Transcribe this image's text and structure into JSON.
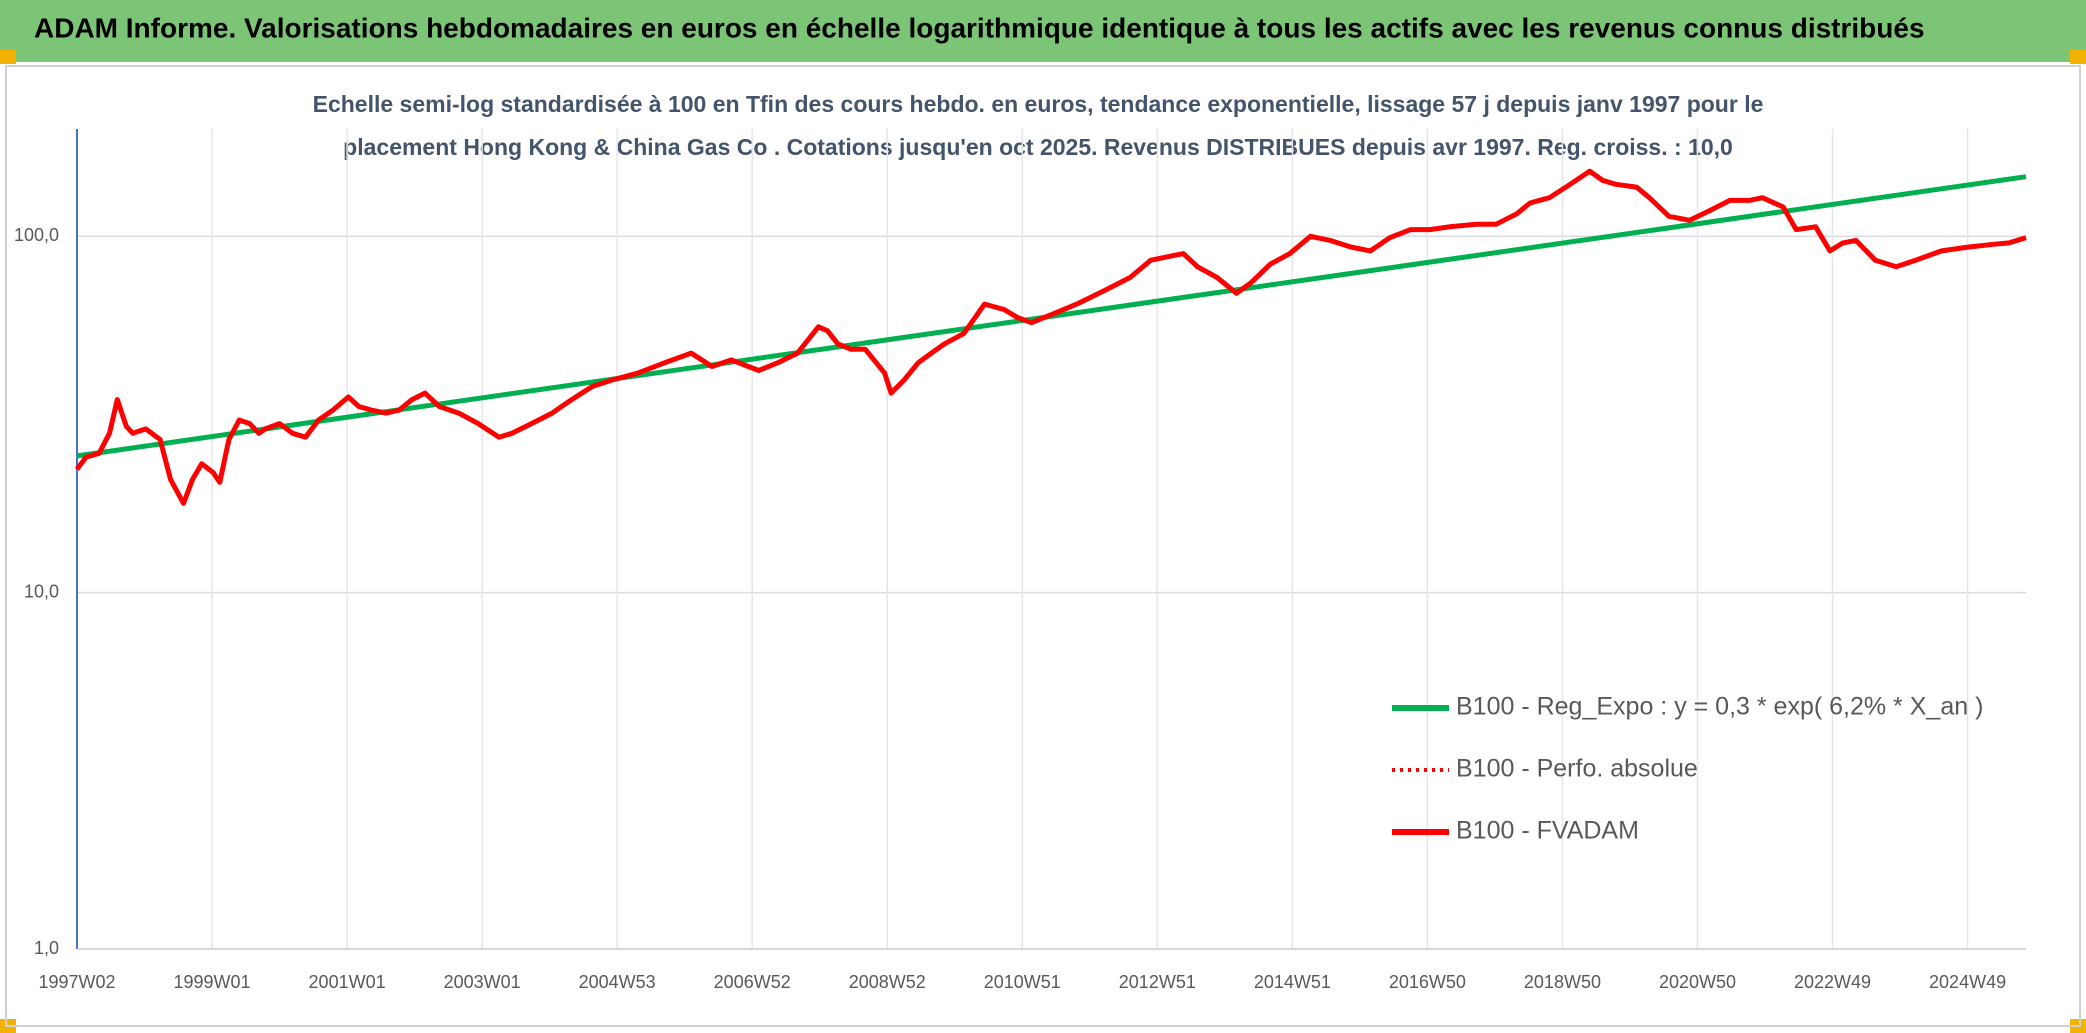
{
  "chart_data": {
    "type": "line",
    "title": "ADAM Informe. Valorisations hebdomadaires en euros en échelle logarithmique identique à tous les actifs avec les revenus connus distribués",
    "subtitle": [
      "Echelle semi-log standardisée à 100 en Tfin des cours hebdo. en euros, tendance exponentielle, lissage 57 j depuis janv 1997 pour le",
      "placement Hong Kong & China Gas Co . Cotations jusqu'en oct 2025. Revenus DISTRIBUES depuis avr 1997. Reg. croiss. : 10,0"
    ],
    "log_scale": true,
    "grid": true,
    "legend": "lower right",
    "xlim": [
      0,
      1501
    ],
    "xticks": [
      {
        "value": 0,
        "label": "1997W02"
      },
      {
        "value": 104,
        "label": "1999W01"
      },
      {
        "value": 208,
        "label": "2001W01"
      },
      {
        "value": 312,
        "label": "2003W01"
      },
      {
        "value": 416,
        "label": "2004W53"
      },
      {
        "value": 520,
        "label": "2006W52"
      },
      {
        "value": 624,
        "label": "2008W52"
      },
      {
        "value": 728,
        "label": "2010W51"
      },
      {
        "value": 832,
        "label": "2012W51"
      },
      {
        "value": 936,
        "label": "2014W51"
      },
      {
        "value": 1040,
        "label": "2016W50"
      },
      {
        "value": 1144,
        "label": "2018W50"
      },
      {
        "value": 1248,
        "label": "2020W50"
      },
      {
        "value": 1352,
        "label": "2022W49"
      },
      {
        "value": 1456,
        "label": "2024W49"
      }
    ],
    "ylim": [
      1,
      200
    ],
    "yticks": [
      {
        "value": 1,
        "label": "1,0"
      },
      {
        "value": 10,
        "label": "10,0"
      },
      {
        "value": 100,
        "label": "100,0"
      }
    ],
    "series": [
      {
        "name": "B100 - Reg_Expo : y = 0,3 * exp( 6,2% *  X_an )",
        "color": "#00b050",
        "line_style": "solid",
        "x": [
          0,
          1501
        ],
        "values": [
          24.2,
          147
        ]
      },
      {
        "name": "B100 - Perfo. absolue",
        "color": "#ff0000",
        "line_style": "dotted",
        "x": [
          0,
          7,
          17,
          25,
          31,
          38,
          43,
          53,
          64,
          72,
          82,
          89,
          96,
          105,
          110,
          117,
          125,
          133,
          140,
          145,
          156,
          166,
          176,
          186,
          197,
          209,
          217,
          227,
          238,
          248,
          258,
          268,
          279,
          294,
          309,
          325,
          335,
          350,
          366,
          381,
          397,
          412,
          432,
          453,
          473,
          489,
          504,
          525,
          540,
          555,
          571,
          578,
          586,
          596,
          607,
          622,
          627,
          637,
          648,
          658,
          668,
          683,
          699,
          714,
          724,
          735,
          750,
          770,
          791,
          811,
          827,
          842,
          852,
          863,
          878,
          893,
          904,
          919,
          934,
          950,
          965,
          981,
          996,
          1011,
          1027,
          1042,
          1057,
          1078,
          1093,
          1109,
          1119,
          1134,
          1150,
          1165,
          1175,
          1185,
          1201,
          1211,
          1226,
          1242,
          1257,
          1273,
          1288,
          1298,
          1314,
          1324,
          1339,
          1350,
          1360,
          1370,
          1385,
          1401,
          1416,
          1436,
          1457,
          1477,
          1488,
          1501
        ],
        "values": [
          22.2,
          24.0,
          24.6,
          28.0,
          34.8,
          29.3,
          28.0,
          28.8,
          26.9,
          20.8,
          17.8,
          20.8,
          23.0,
          21.7,
          20.4,
          26.9,
          30.5,
          29.8,
          28.0,
          28.8,
          29.8,
          28.0,
          27.3,
          30.5,
          32.5,
          35.4,
          33.3,
          32.5,
          31.9,
          32.5,
          34.8,
          36.3,
          33.3,
          31.9,
          29.8,
          27.3,
          28.0,
          29.8,
          31.9,
          34.8,
          37.9,
          39.5,
          41.3,
          44.2,
          47.0,
          43.1,
          45.0,
          42.0,
          44.2,
          47.0,
          55.7,
          54.3,
          49.9,
          48.2,
          48.2,
          41.3,
          36.3,
          39.5,
          44.2,
          47.0,
          49.9,
          53.4,
          64.5,
          62.3,
          59.2,
          57.2,
          60.2,
          64.5,
          70.3,
          76.6,
          85.7,
          87.9,
          89.4,
          82.1,
          76.6,
          69.2,
          74.0,
          83.5,
          89.4,
          100,
          97.4,
          93.3,
          91.0,
          99.1,
          104.4,
          104.4,
          106.3,
          108.1,
          108.1,
          115.7,
          124.0,
          128.3,
          139.9,
          152.3,
          143.5,
          139.9,
          137.4,
          128.3,
          113.8,
          110.9,
          117.8,
          126.1,
          126.1,
          128.3,
          120.8,
          104.4,
          106.3,
          91.0,
          95.8,
          97.4,
          85.7,
          82.1,
          85.7,
          91.0,
          93.3,
          95.0,
          95.8,
          99.1
        ]
      },
      {
        "name": "B100 - FVADAM",
        "color": "#ff0000",
        "line_style": "solid",
        "x": [
          0,
          7,
          17,
          25,
          31,
          38,
          43,
          53,
          64,
          72,
          82,
          89,
          96,
          105,
          110,
          117,
          125,
          133,
          140,
          145,
          156,
          166,
          176,
          186,
          197,
          209,
          217,
          227,
          238,
          248,
          258,
          268,
          279,
          294,
          309,
          325,
          335,
          350,
          366,
          381,
          397,
          412,
          432,
          453,
          473,
          489,
          504,
          525,
          540,
          555,
          571,
          578,
          586,
          596,
          607,
          622,
          627,
          637,
          648,
          658,
          668,
          683,
          699,
          714,
          724,
          735,
          750,
          770,
          791,
          811,
          827,
          842,
          852,
          863,
          878,
          893,
          904,
          919,
          934,
          950,
          965,
          981,
          996,
          1011,
          1027,
          1042,
          1057,
          1078,
          1093,
          1109,
          1119,
          1134,
          1150,
          1165,
          1175,
          1185,
          1201,
          1211,
          1226,
          1242,
          1257,
          1273,
          1288,
          1298,
          1314,
          1324,
          1339,
          1350,
          1360,
          1370,
          1385,
          1401,
          1416,
          1436,
          1457,
          1477,
          1488,
          1501
        ],
        "values": [
          22.2,
          24.0,
          24.6,
          28.0,
          34.8,
          29.3,
          28.0,
          28.8,
          26.9,
          20.8,
          17.8,
          20.8,
          23.0,
          21.7,
          20.4,
          26.9,
          30.5,
          29.8,
          28.0,
          28.8,
          29.8,
          28.0,
          27.3,
          30.5,
          32.5,
          35.4,
          33.3,
          32.5,
          31.9,
          32.5,
          34.8,
          36.3,
          33.3,
          31.9,
          29.8,
          27.3,
          28.0,
          29.8,
          31.9,
          34.8,
          37.9,
          39.5,
          41.3,
          44.2,
          47.0,
          43.1,
          45.0,
          42.0,
          44.2,
          47.0,
          55.7,
          54.3,
          49.9,
          48.2,
          48.2,
          41.3,
          36.3,
          39.5,
          44.2,
          47.0,
          49.9,
          53.4,
          64.5,
          62.3,
          59.2,
          57.2,
          60.2,
          64.5,
          70.3,
          76.6,
          85.7,
          87.9,
          89.4,
          82.1,
          76.6,
          69.2,
          74.0,
          83.5,
          89.4,
          100,
          97.4,
          93.3,
          91.0,
          99.1,
          104.4,
          104.4,
          106.3,
          108.1,
          108.1,
          115.7,
          124.0,
          128.3,
          139.9,
          152.3,
          143.5,
          139.9,
          137.4,
          128.3,
          113.8,
          110.9,
          117.8,
          126.1,
          126.1,
          128.3,
          120.8,
          104.4,
          106.3,
          91.0,
          95.8,
          97.4,
          85.7,
          82.1,
          85.7,
          91.0,
          93.3,
          95.0,
          95.8,
          99.1
        ]
      }
    ]
  }
}
